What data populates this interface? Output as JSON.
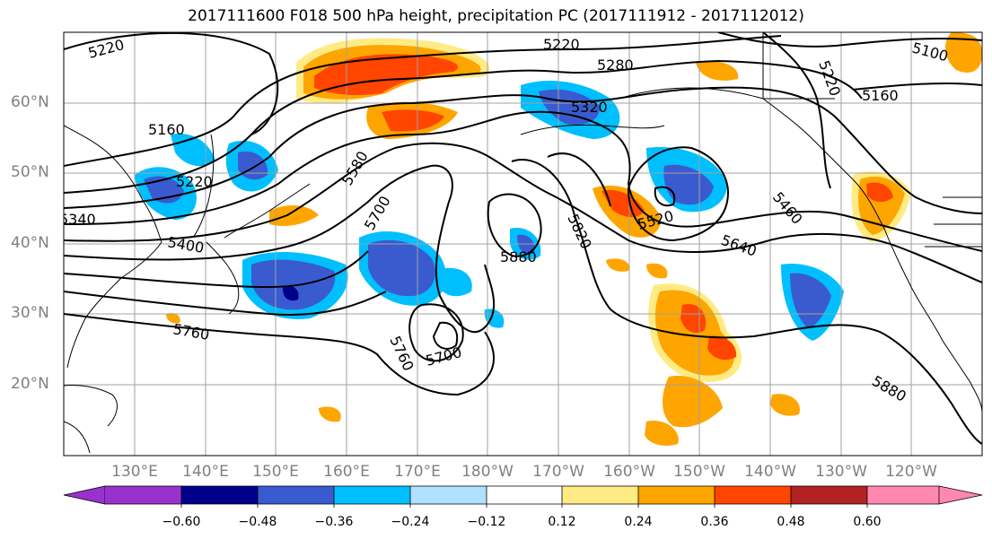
{
  "title": "2017111600 F018 500 hPa height, precipitation PC (2017111912 - 2017112012)",
  "lat_labels": [
    "60°N",
    "50°N",
    "40°N",
    "30°N",
    "20°N"
  ],
  "lon_labels": [
    "130°E",
    "140°E",
    "150°E",
    "160°E",
    "170°E",
    "180°W",
    "170°W",
    "160°W",
    "150°W",
    "140°W",
    "130°W",
    "120°W"
  ],
  "contour_labels": [
    "5220",
    "5220",
    "5280",
    "5100",
    "5160",
    "5160",
    "5220",
    "5320",
    "5580",
    "5700",
    "5820",
    "5460",
    "5520",
    "5640",
    "5400",
    "5880",
    "5760",
    "5760",
    "5700",
    "5880",
    "5340",
    "5220"
  ],
  "colorbar": {
    "ticks": [
      "−0.60",
      "−0.48",
      "−0.36",
      "−0.24",
      "−0.12",
      "0.12",
      "0.24",
      "0.36",
      "0.48",
      "0.60"
    ],
    "colors": [
      "#9932cc",
      "#00008b",
      "#3a5bcf",
      "#00bfff",
      "#b0e0ff",
      "#ffffff",
      "#ffeb84",
      "#ffa500",
      "#ff4500",
      "#b22222",
      "#ff88b0"
    ]
  }
}
